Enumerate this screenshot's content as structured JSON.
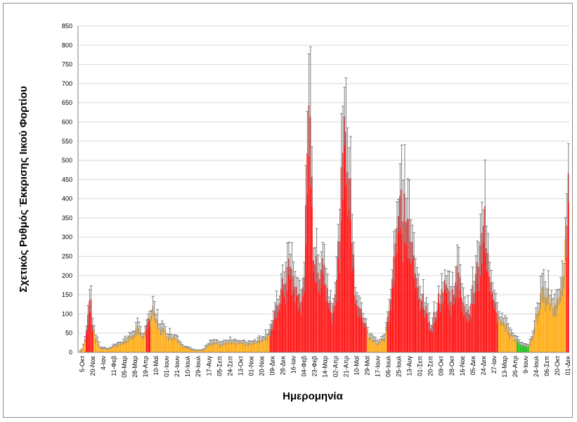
{
  "chart_data": {
    "type": "bar",
    "title": "",
    "xlabel": "Ημερομηνία",
    "ylabel": "Σχετικός Ρυθμός Έκκρισης Ιικού Φορτίου",
    "ylim": [
      0,
      850
    ],
    "yticks": [
      0,
      50,
      100,
      150,
      200,
      250,
      300,
      350,
      400,
      450,
      500,
      550,
      600,
      650,
      700,
      750,
      800,
      850
    ],
    "grid": true,
    "error_bars": true,
    "colors": {
      "red": "#ff0000",
      "orange": "#ffa500",
      "green": "#00c000",
      "error": "#7f7f7f",
      "grid": "#d9d9d9",
      "axis": "#808080"
    },
    "x_tick_labels": [
      "5-Οκτ",
      "20-Νοε",
      "4-Ιαν",
      "11-Φεβ",
      "05-Μαρ",
      "28-Μαρ",
      "19-Απρ",
      "10-Μαϊ",
      "01-Ιουν",
      "21-Ιουν",
      "10-Ιουλ",
      "29-Ιουλ",
      "17-Αυγ",
      "05-Σεπ",
      "24-Σεπ",
      "13-Οκτ",
      "01-Νοε",
      "20-Νοε",
      "09-Δεκ",
      "28-Δεκ",
      "16-Ιαν",
      "04-Φεβ",
      "23-Φεβ",
      "14-Μαρ",
      "02-Απρ",
      "21-Απρ",
      "10-Μαϊ",
      "29-Μαϊ",
      "17-Ιουν",
      "06-Ιουλ",
      "25-Ιουλ",
      "13-Αυγ",
      "01-Σεπ",
      "20-Σεπ",
      "09-Οκτ",
      "28-Οκτ",
      "16-Νοε",
      "05-Δεκ",
      "24-Δεκ",
      "27-Ιαν",
      "13-Μαρ",
      "26-Απρ",
      "9-Ιουν",
      "24-Ιουλ",
      "06-Σεπ",
      "20-Οκτ",
      "01-Δεκ"
    ],
    "series_profile": [
      {
        "x": 0,
        "y": 0,
        "c": "orange"
      },
      {
        "x": 2,
        "y": 8,
        "c": "orange"
      },
      {
        "x": 4,
        "y": 30,
        "c": "orange"
      },
      {
        "x": 6,
        "y": 90,
        "c": "red"
      },
      {
        "x": 7.5,
        "y": 185,
        "c": "red"
      },
      {
        "x": 9,
        "y": 80,
        "c": "red"
      },
      {
        "x": 11,
        "y": 40,
        "c": "orange"
      },
      {
        "x": 14,
        "y": 12,
        "c": "orange"
      },
      {
        "x": 19,
        "y": 8,
        "c": "orange"
      },
      {
        "x": 25,
        "y": 20,
        "c": "orange"
      },
      {
        "x": 32,
        "y": 35,
        "c": "orange"
      },
      {
        "x": 38,
        "y": 60,
        "c": "orange"
      },
      {
        "x": 42,
        "y": 45,
        "c": "orange"
      },
      {
        "x": 46,
        "y": 90,
        "c": "red"
      },
      {
        "x": 48,
        "y": 105,
        "c": "orange"
      },
      {
        "x": 52,
        "y": 70,
        "c": "orange"
      },
      {
        "x": 58,
        "y": 45,
        "c": "orange"
      },
      {
        "x": 63,
        "y": 40,
        "c": "orange"
      },
      {
        "x": 68,
        "y": 15,
        "c": "orange"
      },
      {
        "x": 74,
        "y": 6,
        "c": "orange"
      },
      {
        "x": 80,
        "y": 5,
        "c": "orange"
      },
      {
        "x": 86,
        "y": 25,
        "c": "orange"
      },
      {
        "x": 92,
        "y": 22,
        "c": "orange"
      },
      {
        "x": 100,
        "y": 30,
        "c": "orange"
      },
      {
        "x": 108,
        "y": 22,
        "c": "orange"
      },
      {
        "x": 116,
        "y": 30,
        "c": "orange"
      },
      {
        "x": 122,
        "y": 45,
        "c": "orange"
      },
      {
        "x": 126,
        "y": 80,
        "c": "red"
      },
      {
        "x": 132,
        "y": 170,
        "c": "red"
      },
      {
        "x": 136,
        "y": 230,
        "c": "red"
      },
      {
        "x": 140,
        "y": 180,
        "c": "red"
      },
      {
        "x": 144,
        "y": 130,
        "c": "red"
      },
      {
        "x": 146,
        "y": 220,
        "c": "red"
      },
      {
        "x": 149,
        "y": 580,
        "c": "red"
      },
      {
        "x": 150,
        "y": 700,
        "c": "red"
      },
      {
        "x": 152,
        "y": 260,
        "c": "red"
      },
      {
        "x": 155,
        "y": 200,
        "c": "red"
      },
      {
        "x": 158,
        "y": 260,
        "c": "red"
      },
      {
        "x": 161,
        "y": 160,
        "c": "red"
      },
      {
        "x": 164,
        "y": 120,
        "c": "red"
      },
      {
        "x": 167,
        "y": 180,
        "c": "red"
      },
      {
        "x": 170,
        "y": 420,
        "c": "red"
      },
      {
        "x": 173,
        "y": 610,
        "c": "red"
      },
      {
        "x": 176,
        "y": 400,
        "c": "red"
      },
      {
        "x": 179,
        "y": 160,
        "c": "red"
      },
      {
        "x": 183,
        "y": 100,
        "c": "red"
      },
      {
        "x": 186,
        "y": 80,
        "c": "red"
      },
      {
        "x": 188,
        "y": 40,
        "c": "orange"
      },
      {
        "x": 194,
        "y": 25,
        "c": "orange"
      },
      {
        "x": 198,
        "y": 40,
        "c": "orange"
      },
      {
        "x": 201,
        "y": 110,
        "c": "red"
      },
      {
        "x": 205,
        "y": 300,
        "c": "red"
      },
      {
        "x": 209,
        "y": 400,
        "c": "red"
      },
      {
        "x": 213,
        "y": 360,
        "c": "red"
      },
      {
        "x": 218,
        "y": 200,
        "c": "red"
      },
      {
        "x": 224,
        "y": 120,
        "c": "red"
      },
      {
        "x": 228,
        "y": 70,
        "c": "red"
      },
      {
        "x": 232,
        "y": 120,
        "c": "red"
      },
      {
        "x": 237,
        "y": 190,
        "c": "red"
      },
      {
        "x": 241,
        "y": 140,
        "c": "red"
      },
      {
        "x": 245,
        "y": 210,
        "c": "red"
      },
      {
        "x": 249,
        "y": 140,
        "c": "red"
      },
      {
        "x": 252,
        "y": 100,
        "c": "red"
      },
      {
        "x": 256,
        "y": 170,
        "c": "red"
      },
      {
        "x": 260,
        "y": 260,
        "c": "red"
      },
      {
        "x": 263,
        "y": 350,
        "c": "red"
      },
      {
        "x": 266,
        "y": 220,
        "c": "red"
      },
      {
        "x": 270,
        "y": 130,
        "c": "red"
      },
      {
        "x": 273,
        "y": 90,
        "c": "orange"
      },
      {
        "x": 278,
        "y": 60,
        "c": "orange"
      },
      {
        "x": 282,
        "y": 40,
        "c": "orange"
      },
      {
        "x": 286,
        "y": 20,
        "c": "green"
      },
      {
        "x": 290,
        "y": 15,
        "c": "green"
      },
      {
        "x": 293,
        "y": 30,
        "c": "orange"
      },
      {
        "x": 297,
        "y": 110,
        "c": "orange"
      },
      {
        "x": 301,
        "y": 170,
        "c": "orange"
      },
      {
        "x": 305,
        "y": 150,
        "c": "orange"
      },
      {
        "x": 308,
        "y": 110,
        "c": "orange"
      },
      {
        "x": 312,
        "y": 180,
        "c": "orange"
      },
      {
        "x": 315,
        "y": 260,
        "c": "orange"
      },
      {
        "x": 317,
        "y": 420,
        "c": "red"
      }
    ]
  }
}
